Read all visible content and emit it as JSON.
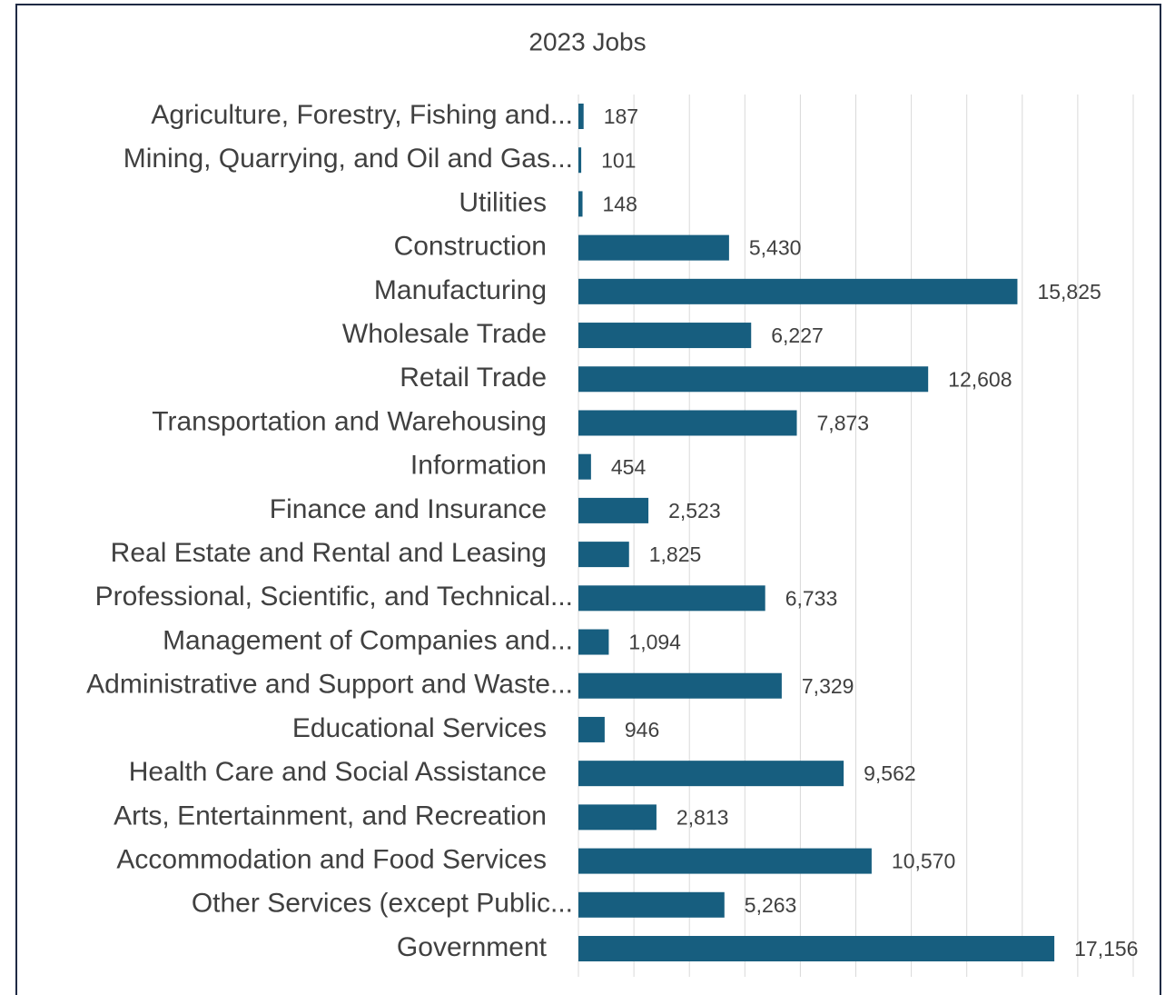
{
  "chart_data": {
    "type": "barh",
    "title": "2023 Jobs",
    "categories": [
      "Agriculture, Forestry, Fishing and...",
      "Mining, Quarrying, and Oil and Gas...",
      "Utilities",
      "Construction",
      "Manufacturing",
      "Wholesale Trade",
      "Retail Trade",
      "Transportation and Warehousing",
      "Information",
      "Finance and Insurance",
      "Real Estate and Rental and Leasing",
      "Professional, Scientific, and Technical...",
      "Management of Companies and...",
      "Administrative and Support and Waste...",
      "Educational Services",
      "Health Care and Social Assistance",
      "Arts, Entertainment, and Recreation",
      "Accommodation and Food Services",
      "Other Services (except Public...",
      "Government"
    ],
    "values": [
      187,
      101,
      148,
      5430,
      15825,
      6227,
      12608,
      7873,
      454,
      2523,
      1825,
      6733,
      1094,
      7329,
      946,
      9562,
      2813,
      10570,
      5263,
      17156
    ],
    "value_labels": [
      "187",
      "101",
      "148",
      "5,430",
      "15,825",
      "6,227",
      "12,608",
      "7,873",
      "454",
      "2,523",
      "1,825",
      "6,733",
      "1,094",
      "7,329",
      "946",
      "9,562",
      "2,813",
      "10,570",
      "5,263",
      "17,156"
    ],
    "color": "#175e7f",
    "xlim": [
      0,
      20000
    ],
    "xticks": [
      0,
      2000,
      4000,
      6000,
      8000,
      10000,
      12000,
      14000,
      16000,
      18000,
      20000
    ],
    "grid": true
  }
}
